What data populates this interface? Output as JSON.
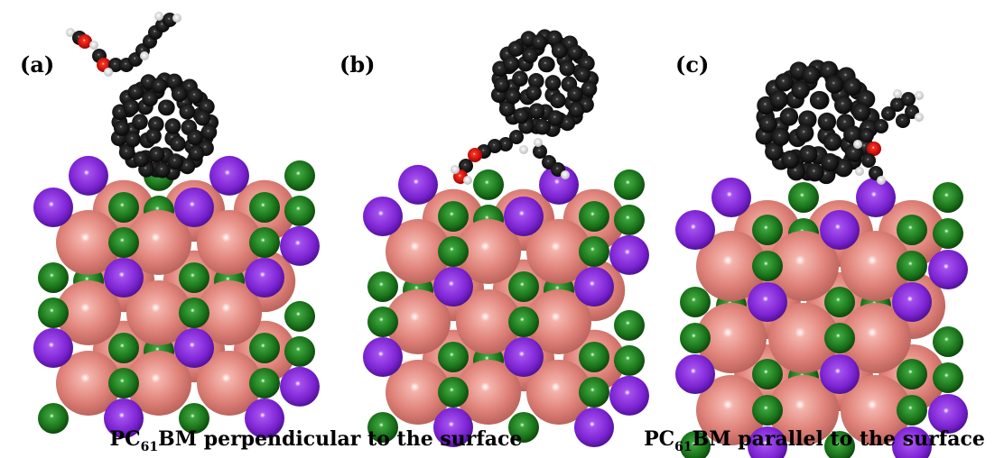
{
  "panels": [
    {
      "label": "(a)"
    },
    {
      "label": "(b)"
    },
    {
      "label": "(c)"
    }
  ],
  "captions": [
    {
      "prefix": "PC",
      "subscript": "61",
      "suffix": "BM perpendicular to the surface"
    },
    {
      "prefix": "PC",
      "subscript": "61",
      "suffix": "BM parallel to the surface"
    }
  ]
}
